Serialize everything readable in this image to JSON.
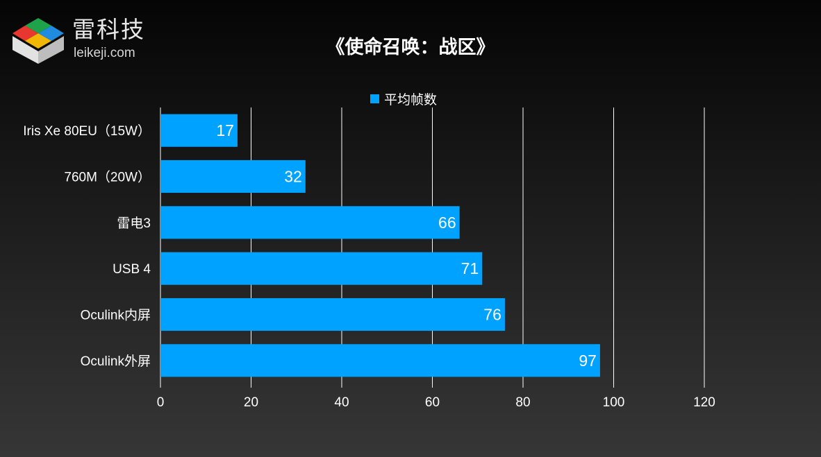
{
  "brand": {
    "name_cn": "雷科技",
    "domain": "leikeji.com",
    "colors": [
      "#e8372f",
      "#1fa34a",
      "#1f8ce0",
      "#f2b705"
    ]
  },
  "chart_data": {
    "type": "bar",
    "orientation": "horizontal",
    "title": "《使命召唤：战区》",
    "categories": [
      "Iris Xe 80EU（15W）",
      "760M（20W）",
      "雷电3",
      "USB 4",
      "Oculink内屏",
      "Oculink外屏"
    ],
    "series": [
      {
        "name": "平均帧数",
        "values": [
          17,
          32,
          66,
          71,
          76,
          97
        ],
        "color": "#00a2ff"
      }
    ],
    "xlim": [
      0,
      120
    ],
    "xticks": [
      0,
      20,
      40,
      60,
      80,
      100,
      120
    ],
    "grid": true,
    "data_labels": true,
    "legend_position": "top"
  }
}
